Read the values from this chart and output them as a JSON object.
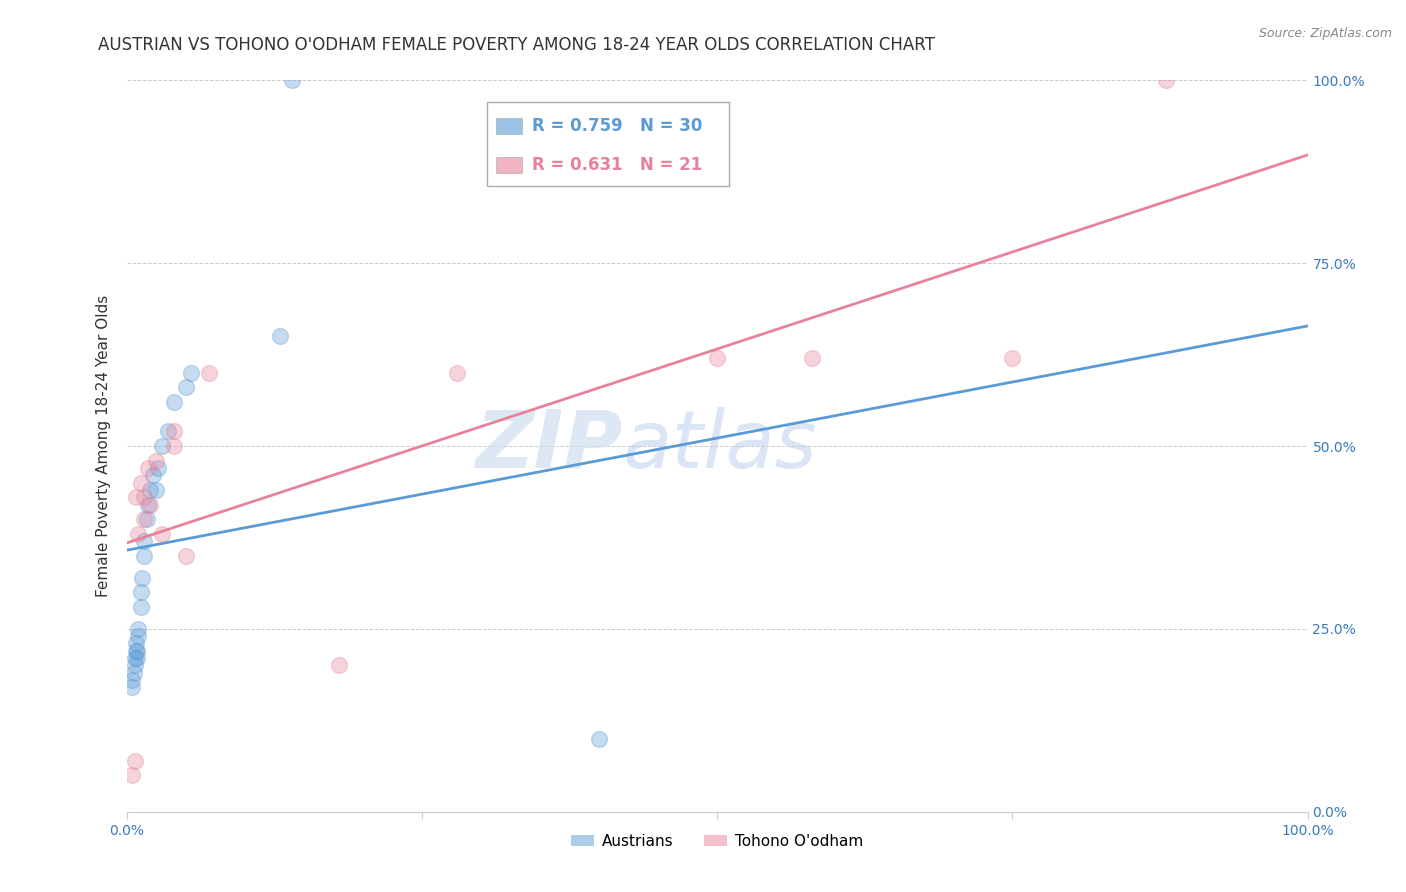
{
  "title": "AUSTRIAN VS TOHONO O'ODHAM FEMALE POVERTY AMONG 18-24 YEAR OLDS CORRELATION CHART",
  "source": "Source: ZipAtlas.com",
  "ylabel": "Female Poverty Among 18-24 Year Olds",
  "xlim": [
    0,
    1.0
  ],
  "ylim": [
    0,
    1.0
  ],
  "background_color": "#ffffff",
  "grid_color": "#cccccc",
  "watermark_zip": "ZIP",
  "watermark_atlas": "atlas",
  "austrians_x": [
    0.005,
    0.005,
    0.006,
    0.007,
    0.007,
    0.008,
    0.008,
    0.009,
    0.009,
    0.01,
    0.01,
    0.012,
    0.012,
    0.013,
    0.015,
    0.015,
    0.017,
    0.018,
    0.02,
    0.022,
    0.025,
    0.027,
    0.03,
    0.035,
    0.04,
    0.05,
    0.055,
    0.13,
    0.14,
    0.4
  ],
  "austrians_y": [
    0.17,
    0.18,
    0.19,
    0.2,
    0.21,
    0.22,
    0.23,
    0.21,
    0.22,
    0.24,
    0.25,
    0.28,
    0.3,
    0.32,
    0.35,
    0.37,
    0.4,
    0.42,
    0.44,
    0.46,
    0.44,
    0.47,
    0.5,
    0.52,
    0.56,
    0.58,
    0.6,
    0.65,
    1.0,
    0.1
  ],
  "tohono_x": [
    0.005,
    0.007,
    0.008,
    0.01,
    0.012,
    0.015,
    0.015,
    0.018,
    0.02,
    0.025,
    0.03,
    0.04,
    0.04,
    0.05,
    0.07,
    0.18,
    0.28,
    0.5,
    0.58,
    0.75,
    0.88
  ],
  "tohono_y": [
    0.05,
    0.07,
    0.43,
    0.38,
    0.45,
    0.4,
    0.43,
    0.47,
    0.42,
    0.48,
    0.38,
    0.5,
    0.52,
    0.35,
    0.6,
    0.2,
    0.6,
    0.62,
    0.62,
    0.62,
    1.0
  ],
  "austrians_color": "#5b9bd5",
  "tohono_color": "#e8829a",
  "austrians_label": "Austrians",
  "tohono_label": "Tohono O'odham",
  "R_austrians": 0.759,
  "N_austrians": 30,
  "R_tohono": 0.631,
  "N_tohono": 21,
  "title_fontsize": 12,
  "axis_label_fontsize": 11,
  "tick_fontsize": 10,
  "marker_size": 130,
  "marker_alpha": 0.35,
  "line_width": 2.0
}
